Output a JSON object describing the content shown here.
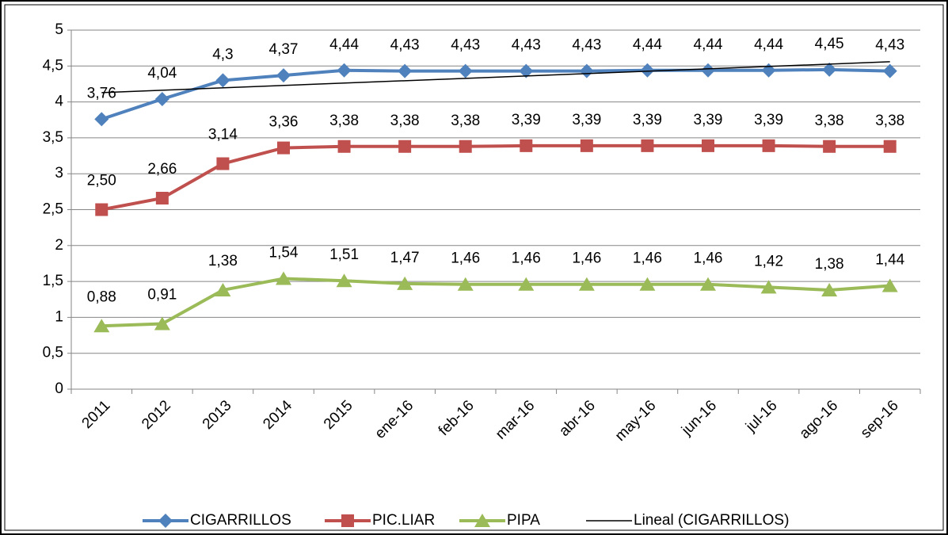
{
  "chart_data": {
    "type": "line",
    "categories": [
      "2011",
      "2012",
      "2013",
      "2014",
      "2015",
      "ene-16",
      "feb-16",
      "mar-16",
      "abr-16",
      "may-16",
      "jun-16",
      "jul-16",
      "ago-16",
      "sep-16"
    ],
    "series": [
      {
        "name": "CIGARRILLOS",
        "color": "#4f81bd",
        "marker": "diamond",
        "values": [
          3.76,
          4.04,
          4.3,
          4.37,
          4.44,
          4.43,
          4.43,
          4.43,
          4.43,
          4.44,
          4.44,
          4.44,
          4.45,
          4.43
        ],
        "value_labels": [
          "3,76",
          "4,04",
          "4,3",
          "4,37",
          "4,44",
          "4,43",
          "4,43",
          "4,43",
          "4,43",
          "4,44",
          "4,44",
          "4,44",
          "4,45",
          "4,43"
        ]
      },
      {
        "name": "PIC.LIAR",
        "color": "#c0504d",
        "marker": "square",
        "values": [
          2.5,
          2.66,
          3.14,
          3.36,
          3.38,
          3.38,
          3.38,
          3.39,
          3.39,
          3.39,
          3.39,
          3.39,
          3.38,
          3.38
        ],
        "value_labels": [
          "2,50",
          "2,66",
          "3,14",
          "3,36",
          "3,38",
          "3,38",
          "3,38",
          "3,39",
          "3,39",
          "3,39",
          "3,39",
          "3,39",
          "3,38",
          "3,38"
        ]
      },
      {
        "name": "PIPA",
        "color": "#9bbb59",
        "marker": "triangle",
        "values": [
          0.88,
          0.91,
          1.38,
          1.54,
          1.51,
          1.47,
          1.46,
          1.46,
          1.46,
          1.46,
          1.46,
          1.42,
          1.38,
          1.44
        ],
        "value_labels": [
          "0,88",
          "0,91",
          "1,38",
          "1,54",
          "1,51",
          "1,47",
          "1,46",
          "1,46",
          "1,46",
          "1,46",
          "1,46",
          "1,42",
          "1,38",
          "1,44"
        ]
      },
      {
        "name": "Lineal (CIGARRILLOS)",
        "color": "#000000",
        "marker": "none",
        "values": [
          4.13,
          4.16,
          4.2,
          4.23,
          4.26,
          4.3,
          4.33,
          4.36,
          4.39,
          4.43,
          4.46,
          4.49,
          4.53,
          4.56
        ]
      }
    ],
    "ylim": [
      0,
      5
    ],
    "yticks": [
      0,
      {
        "value": 0.5,
        "label": "0,5"
      },
      1,
      {
        "value": 1.5,
        "label": "1,5"
      },
      2,
      {
        "value": 2.5,
        "label": "2,5"
      },
      3,
      {
        "value": 3.5,
        "label": "3,5"
      },
      4,
      {
        "value": 4.5,
        "label": "4,5"
      },
      5
    ],
    "grid": true,
    "legend": "bottom"
  }
}
